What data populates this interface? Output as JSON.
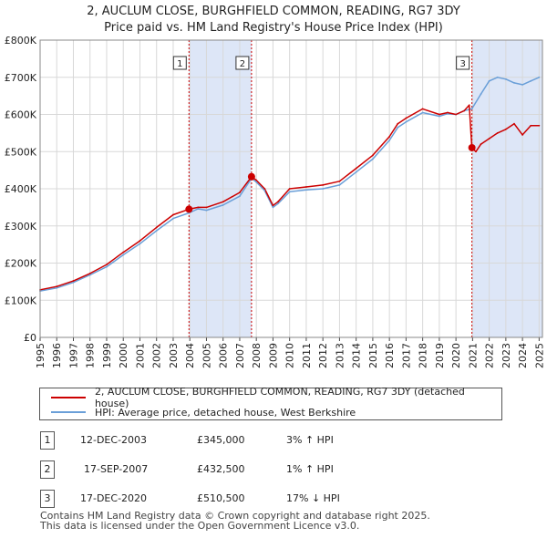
{
  "title": "2, AUCLUM CLOSE, BURGHFIELD COMMON, READING, RG7 3DY",
  "subtitle": "Price paid vs. HM Land Registry's House Price Index (HPI)",
  "colors": {
    "property": "#cc0000",
    "hpi": "#6a9fd8",
    "shade": "#dde6f7",
    "vline": "#cc0000"
  },
  "chart_data": {
    "type": "line",
    "x_range": [
      1995,
      2025.2
    ],
    "ylim": [
      0,
      800000
    ],
    "y_ticks": [
      {
        "value": 0,
        "label": "£0"
      },
      {
        "value": 100000,
        "label": "£100K"
      },
      {
        "value": 200000,
        "label": "£200K"
      },
      {
        "value": 300000,
        "label": "£300K"
      },
      {
        "value": 400000,
        "label": "£400K"
      },
      {
        "value": 500000,
        "label": "£500K"
      },
      {
        "value": 600000,
        "label": "£600K"
      },
      {
        "value": 700000,
        "label": "£700K"
      },
      {
        "value": 800000,
        "label": "£800K"
      }
    ],
    "x_ticks": [
      "1995",
      "1996",
      "1997",
      "1998",
      "1999",
      "2000",
      "2001",
      "2002",
      "2003",
      "2004",
      "2005",
      "2006",
      "2007",
      "2008",
      "2009",
      "2010",
      "2011",
      "2012",
      "2013",
      "2014",
      "2015",
      "2016",
      "2017",
      "2018",
      "2019",
      "2020",
      "2021",
      "2022",
      "2023",
      "2024",
      "2025"
    ],
    "shaded_ranges": [
      [
        2003.95,
        2007.71
      ],
      [
        2020.96,
        2025.2
      ]
    ],
    "series": [
      {
        "name": "hpi",
        "x": [
          1995,
          1996,
          1997,
          1998,
          1999,
          2000,
          2001,
          2002,
          2003,
          2003.95,
          2004.5,
          2005,
          2006,
          2007,
          2007.71,
          2008,
          2008.5,
          2009.0,
          2009.3,
          2010,
          2011,
          2012,
          2013,
          2014,
          2015,
          2016,
          2016.5,
          2017,
          2018,
          2019,
          2019.5,
          2020,
          2020.5,
          2020.96,
          2021.5,
          2022,
          2022.5,
          2023,
          2023.5,
          2024,
          2024.5,
          2025
        ],
        "y": [
          125000,
          133000,
          148000,
          168000,
          190000,
          222000,
          252000,
          287000,
          320000,
          335000,
          346000,
          342000,
          356000,
          380000,
          428000,
          418000,
          395000,
          350000,
          360000,
          392000,
          397000,
          400000,
          410000,
          445000,
          480000,
          530000,
          565000,
          580000,
          605000,
          595000,
          602000,
          600000,
          610000,
          615000,
          655000,
          690000,
          700000,
          695000,
          685000,
          680000,
          690000,
          700000
        ]
      },
      {
        "name": "property",
        "x": [
          1995,
          1996,
          1997,
          1998,
          1999,
          2000,
          2001,
          2002,
          2003,
          2003.95,
          2004.5,
          2005,
          2006,
          2007,
          2007.71,
          2008,
          2008.5,
          2009.0,
          2009.3,
          2010,
          2011,
          2012,
          2013,
          2014,
          2015,
          2016,
          2016.5,
          2017,
          2018,
          2019,
          2019.5,
          2020,
          2020.5,
          2020.8,
          2020.96,
          2021.2,
          2021.5,
          2022,
          2022.5,
          2023,
          2023.5,
          2024,
          2024.5,
          2025
        ],
        "y": [
          128000,
          137000,
          152000,
          172000,
          196000,
          229000,
          260000,
          296000,
          330000,
          345000,
          350000,
          350000,
          365000,
          390000,
          432500,
          423000,
          400000,
          355000,
          365000,
          400000,
          405000,
          410000,
          420000,
          455000,
          490000,
          540000,
          575000,
          590000,
          615000,
          600000,
          605000,
          600000,
          610000,
          625000,
          510500,
          500000,
          520000,
          535000,
          550000,
          560000,
          575000,
          545000,
          570000,
          570000
        ]
      }
    ],
    "sales": [
      {
        "label": "1",
        "x": 2003.95,
        "y": 345000
      },
      {
        "label": "2",
        "x": 2007.71,
        "y": 432500
      },
      {
        "label": "3",
        "x": 2020.96,
        "y": 510500
      }
    ]
  },
  "legend": {
    "property": "2, AUCLUM CLOSE, BURGHFIELD COMMON, READING, RG7 3DY (detached house)",
    "hpi": "HPI: Average price, detached house, West Berkshire"
  },
  "transactions": [
    {
      "num": "1",
      "date": "12-DEC-2003",
      "price": "£345,000",
      "hpi": "3% ↑ HPI"
    },
    {
      "num": "2",
      "date": "17-SEP-2007",
      "price": "£432,500",
      "hpi": "1% ↑ HPI"
    },
    {
      "num": "3",
      "date": "17-DEC-2020",
      "price": "£510,500",
      "hpi": "17% ↓ HPI"
    }
  ],
  "footer": {
    "line1": "Contains HM Land Registry data © Crown copyright and database right 2025.",
    "line2": "This data is licensed under the Open Government Licence v3.0."
  }
}
